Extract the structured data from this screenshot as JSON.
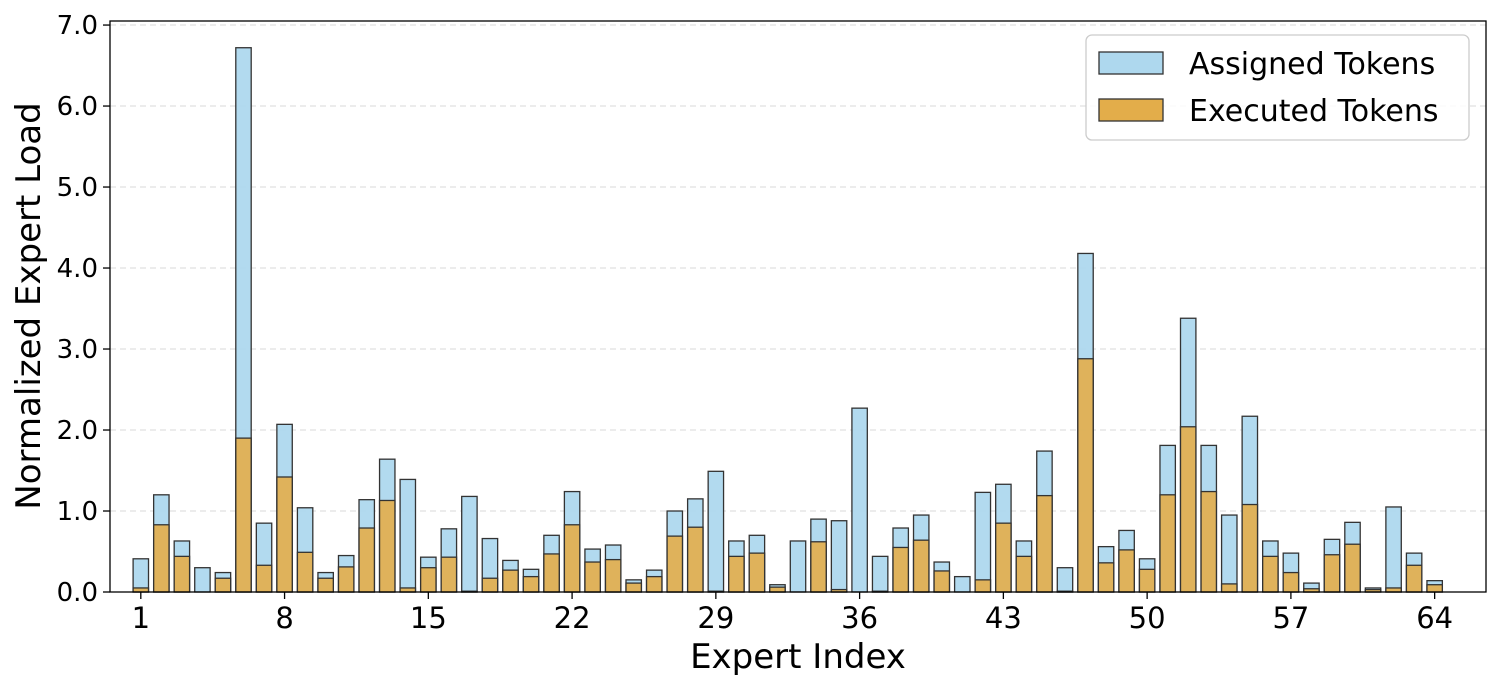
{
  "chart_data": {
    "type": "bar",
    "title": "",
    "xlabel": "Expert Index",
    "ylabel": "Normalized Expert Load",
    "ylim": [
      0,
      7.05
    ],
    "xlim": [
      -0.5,
      66.5
    ],
    "x_ticks": [
      1,
      8,
      15,
      22,
      29,
      36,
      43,
      50,
      57,
      64
    ],
    "y_ticks": [
      "0.0",
      "1.0",
      "2.0",
      "3.0",
      "4.0",
      "5.0",
      "6.0",
      "7.0"
    ],
    "y_tick_values": [
      0,
      1,
      2,
      3,
      4,
      5,
      6,
      7
    ],
    "grid": "y, dashed",
    "legend_position": "top-right",
    "categories": [
      1,
      2,
      3,
      4,
      5,
      6,
      7,
      8,
      9,
      10,
      11,
      12,
      13,
      14,
      15,
      16,
      17,
      18,
      19,
      20,
      21,
      22,
      23,
      24,
      25,
      26,
      27,
      28,
      29,
      30,
      31,
      32,
      33,
      34,
      35,
      36,
      37,
      38,
      39,
      40,
      41,
      42,
      43,
      44,
      45,
      46,
      47,
      48,
      49,
      50,
      51,
      52,
      53,
      54,
      55,
      56,
      57,
      58,
      59,
      60,
      61,
      62,
      63,
      64
    ],
    "series": [
      {
        "name": "Assigned Tokens",
        "color": "#aed8ee",
        "values": [
          0.41,
          1.2,
          0.63,
          0.3,
          0.24,
          6.72,
          0.85,
          2.07,
          1.04,
          0.24,
          0.45,
          1.14,
          1.64,
          1.39,
          0.43,
          0.78,
          1.18,
          0.66,
          0.39,
          0.28,
          0.7,
          1.24,
          0.53,
          0.58,
          0.15,
          0.27,
          1.0,
          1.15,
          1.49,
          0.63,
          0.7,
          0.09,
          0.63,
          0.9,
          0.88,
          2.27,
          0.44,
          0.79,
          0.95,
          0.37,
          0.19,
          1.23,
          1.33,
          0.63,
          1.74,
          0.3,
          4.18,
          0.56,
          0.76,
          0.41,
          1.81,
          3.38,
          1.81,
          0.95,
          2.17,
          0.63,
          0.48,
          0.11,
          0.65,
          0.86,
          0.05,
          1.05,
          0.48,
          0.14
        ]
      },
      {
        "name": "Executed Tokens",
        "color": "#e3ad4a",
        "values": [
          0.05,
          0.83,
          0.44,
          0.0,
          0.17,
          1.9,
          0.33,
          1.42,
          0.49,
          0.17,
          0.31,
          0.79,
          1.13,
          0.05,
          0.3,
          0.43,
          0.01,
          0.17,
          0.27,
          0.19,
          0.47,
          0.83,
          0.37,
          0.4,
          0.11,
          0.19,
          0.69,
          0.8,
          0.01,
          0.44,
          0.48,
          0.06,
          0.0,
          0.62,
          0.03,
          0.0,
          0.01,
          0.55,
          0.64,
          0.26,
          0.0,
          0.15,
          0.85,
          0.44,
          1.19,
          0.01,
          2.88,
          0.36,
          0.52,
          0.28,
          1.2,
          2.04,
          1.24,
          0.1,
          1.08,
          0.44,
          0.24,
          0.04,
          0.46,
          0.59,
          0.03,
          0.05,
          0.33,
          0.09
        ]
      }
    ]
  },
  "legend": {
    "items": [
      {
        "label": "Assigned Tokens",
        "color": "#aed8ee"
      },
      {
        "label": "Executed Tokens",
        "color": "#e3ad4a"
      }
    ]
  }
}
